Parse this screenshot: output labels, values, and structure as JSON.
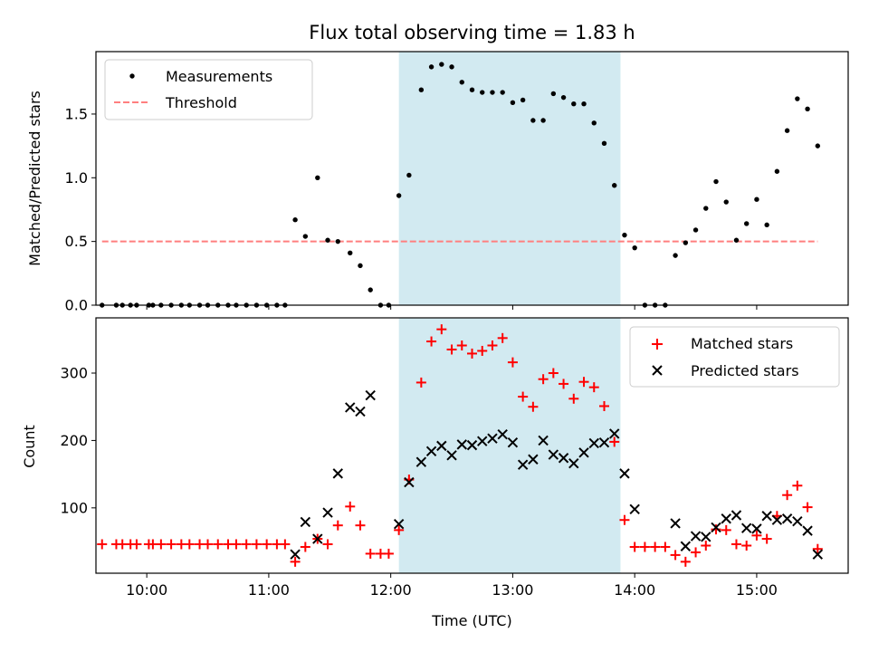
{
  "chart_data": [
    {
      "type": "scatter",
      "title": "Flux total observing time = 1.83 h",
      "xlabel": "",
      "ylabel": "Matched/Predicted stars",
      "ylim": [
        0,
        1.99
      ],
      "yticks": [
        0.0,
        0.5,
        1.0,
        1.5
      ],
      "xlim": [
        "09:35",
        "15:45"
      ],
      "xticks": [
        "10:00",
        "11:00",
        "12:00",
        "13:00",
        "14:00",
        "15:00"
      ],
      "shaded_interval": [
        "12:04",
        "13:53"
      ],
      "shade_color": "#add8e6",
      "legend_position": "upper left",
      "series": [
        {
          "name": "Measurements",
          "marker": "dot",
          "color": "#000000",
          "points": [
            [
              "09:38",
              0
            ],
            [
              "09:45",
              0
            ],
            [
              "09:48",
              0
            ],
            [
              "09:52",
              0
            ],
            [
              "09:55",
              0
            ],
            [
              "10:01",
              0
            ],
            [
              "10:03",
              0
            ],
            [
              "10:07",
              0
            ],
            [
              "10:12",
              0
            ],
            [
              "10:17",
              0
            ],
            [
              "10:21",
              0
            ],
            [
              "10:26",
              0
            ],
            [
              "10:30",
              0
            ],
            [
              "10:35",
              0
            ],
            [
              "10:40",
              0
            ],
            [
              "10:44",
              0
            ],
            [
              "10:49",
              0
            ],
            [
              "10:54",
              0
            ],
            [
              "10:59",
              0
            ],
            [
              "11:04",
              0
            ],
            [
              "11:08",
              0
            ],
            [
              "11:13",
              0.67
            ],
            [
              "11:18",
              0.54
            ],
            [
              "11:24",
              1.0
            ],
            [
              "11:29",
              0.51
            ],
            [
              "11:34",
              0.5
            ],
            [
              "11:40",
              0.41
            ],
            [
              "11:45",
              0.31
            ],
            [
              "11:50",
              0.12
            ],
            [
              "11:55",
              0
            ],
            [
              "11:59",
              0
            ],
            [
              "12:04",
              0.86
            ],
            [
              "12:09",
              1.02
            ],
            [
              "12:15",
              1.69
            ],
            [
              "12:20",
              1.87
            ],
            [
              "12:25",
              1.89
            ],
            [
              "12:30",
              1.87
            ],
            [
              "12:35",
              1.75
            ],
            [
              "12:40",
              1.69
            ],
            [
              "12:45",
              1.67
            ],
            [
              "12:50",
              1.67
            ],
            [
              "12:55",
              1.67
            ],
            [
              "13:00",
              1.59
            ],
            [
              "13:05",
              1.61
            ],
            [
              "13:10",
              1.45
            ],
            [
              "13:15",
              1.45
            ],
            [
              "13:20",
              1.66
            ],
            [
              "13:25",
              1.63
            ],
            [
              "13:30",
              1.58
            ],
            [
              "13:35",
              1.58
            ],
            [
              "13:40",
              1.43
            ],
            [
              "13:45",
              1.27
            ],
            [
              "13:50",
              0.94
            ],
            [
              "13:55",
              0.55
            ],
            [
              "14:00",
              0.45
            ],
            [
              "14:05",
              0
            ],
            [
              "14:10",
              0
            ],
            [
              "14:15",
              0
            ],
            [
              "14:20",
              0.39
            ],
            [
              "14:25",
              0.49
            ],
            [
              "14:30",
              0.59
            ],
            [
              "14:35",
              0.76
            ],
            [
              "14:40",
              0.97
            ],
            [
              "14:45",
              0.81
            ],
            [
              "14:50",
              0.51
            ],
            [
              "14:55",
              0.64
            ],
            [
              "15:00",
              0.83
            ],
            [
              "15:05",
              0.63
            ],
            [
              "15:10",
              1.05
            ],
            [
              "15:15",
              1.37
            ],
            [
              "15:20",
              1.62
            ],
            [
              "15:25",
              1.54
            ],
            [
              "15:30",
              1.25
            ]
          ]
        },
        {
          "name": "Threshold",
          "marker": "dashed-line",
          "color": "#ff7f7f",
          "points": [
            [
              "09:38",
              0.5
            ],
            [
              "15:30",
              0.5
            ]
          ]
        }
      ]
    },
    {
      "type": "scatter",
      "title": "",
      "xlabel": "Time (UTC)",
      "ylabel": "Count",
      "ylim": [
        3,
        382
      ],
      "yticks": [
        100,
        200,
        300
      ],
      "xlim": [
        "09:35",
        "15:45"
      ],
      "xticks": [
        "10:00",
        "11:00",
        "12:00",
        "13:00",
        "14:00",
        "15:00"
      ],
      "shaded_interval": [
        "12:04",
        "13:53"
      ],
      "shade_color": "#add8e6",
      "legend_position": "upper right",
      "series": [
        {
          "name": "Matched stars",
          "marker": "plus",
          "color": "#ff0000",
          "points": [
            [
              "09:38",
              46
            ],
            [
              "09:45",
              46
            ],
            [
              "09:48",
              46
            ],
            [
              "09:52",
              46
            ],
            [
              "09:55",
              46
            ],
            [
              "10:01",
              46
            ],
            [
              "10:03",
              46
            ],
            [
              "10:07",
              46
            ],
            [
              "10:12",
              46
            ],
            [
              "10:17",
              46
            ],
            [
              "10:21",
              46
            ],
            [
              "10:26",
              46
            ],
            [
              "10:30",
              46
            ],
            [
              "10:35",
              46
            ],
            [
              "10:40",
              46
            ],
            [
              "10:44",
              46
            ],
            [
              "10:49",
              46
            ],
            [
              "10:54",
              46
            ],
            [
              "10:59",
              46
            ],
            [
              "11:04",
              46
            ],
            [
              "11:08",
              46
            ],
            [
              "11:13",
              20
            ],
            [
              "11:18",
              42
            ],
            [
              "11:24",
              54
            ],
            [
              "11:29",
              46
            ],
            [
              "11:34",
              74
            ],
            [
              "11:40",
              102
            ],
            [
              "11:45",
              74
            ],
            [
              "11:50",
              32
            ],
            [
              "11:55",
              32
            ],
            [
              "11:59",
              32
            ],
            [
              "12:04",
              67
            ],
            [
              "12:09",
              142
            ],
            [
              "12:15",
              286
            ],
            [
              "12:20",
              347
            ],
            [
              "12:25",
              365
            ],
            [
              "12:30",
              335
            ],
            [
              "12:35",
              341
            ],
            [
              "12:40",
              329
            ],
            [
              "12:45",
              333
            ],
            [
              "12:50",
              341
            ],
            [
              "12:55",
              352
            ],
            [
              "13:00",
              316
            ],
            [
              "13:05",
              265
            ],
            [
              "13:10",
              250
            ],
            [
              "13:15",
              291
            ],
            [
              "13:20",
              300
            ],
            [
              "13:25",
              284
            ],
            [
              "13:30",
              262
            ],
            [
              "13:35",
              287
            ],
            [
              "13:40",
              279
            ],
            [
              "13:45",
              251
            ],
            [
              "13:50",
              198
            ],
            [
              "13:55",
              82
            ],
            [
              "14:00",
              42
            ],
            [
              "14:05",
              42
            ],
            [
              "14:10",
              42
            ],
            [
              "14:15",
              42
            ],
            [
              "14:20",
              30
            ],
            [
              "14:25",
              20
            ],
            [
              "14:30",
              34
            ],
            [
              "14:35",
              44
            ],
            [
              "14:40",
              68
            ],
            [
              "14:45",
              67
            ],
            [
              "14:50",
              46
            ],
            [
              "14:55",
              44
            ],
            [
              "15:00",
              59
            ],
            [
              "15:05",
              54
            ],
            [
              "15:10",
              88
            ],
            [
              "15:15",
              119
            ],
            [
              "15:20",
              133
            ],
            [
              "15:25",
              101
            ],
            [
              "15:30",
              39
            ]
          ]
        },
        {
          "name": "Predicted stars",
          "marker": "x",
          "color": "#000000",
          "points": [
            [
              "11:13",
              31
            ],
            [
              "11:18",
              79
            ],
            [
              "11:24",
              54
            ],
            [
              "11:29",
              93
            ],
            [
              "11:34",
              151
            ],
            [
              "11:40",
              249
            ],
            [
              "11:45",
              243
            ],
            [
              "11:50",
              267
            ],
            [
              "12:04",
              76
            ],
            [
              "12:09",
              138
            ],
            [
              "12:15",
              168
            ],
            [
              "12:20",
              184
            ],
            [
              "12:25",
              192
            ],
            [
              "12:30",
              178
            ],
            [
              "12:35",
              194
            ],
            [
              "12:40",
              193
            ],
            [
              "12:45",
              199
            ],
            [
              "12:50",
              203
            ],
            [
              "12:55",
              209
            ],
            [
              "13:00",
              197
            ],
            [
              "13:05",
              164
            ],
            [
              "13:10",
              172
            ],
            [
              "13:15",
              200
            ],
            [
              "13:20",
              179
            ],
            [
              "13:25",
              174
            ],
            [
              "13:30",
              166
            ],
            [
              "13:35",
              182
            ],
            [
              "13:40",
              196
            ],
            [
              "13:45",
              197
            ],
            [
              "13:50",
              210
            ],
            [
              "13:55",
              151
            ],
            [
              "14:00",
              98
            ],
            [
              "14:20",
              77
            ],
            [
              "14:25",
              43
            ],
            [
              "14:30",
              58
            ],
            [
              "14:35",
              57
            ],
            [
              "14:40",
              71
            ],
            [
              "14:45",
              84
            ],
            [
              "14:50",
              89
            ],
            [
              "14:55",
              70
            ],
            [
              "15:00",
              69
            ],
            [
              "15:05",
              88
            ],
            [
              "15:10",
              82
            ],
            [
              "15:15",
              84
            ],
            [
              "15:20",
              80
            ],
            [
              "15:25",
              66
            ],
            [
              "15:30",
              31
            ]
          ]
        }
      ]
    }
  ]
}
